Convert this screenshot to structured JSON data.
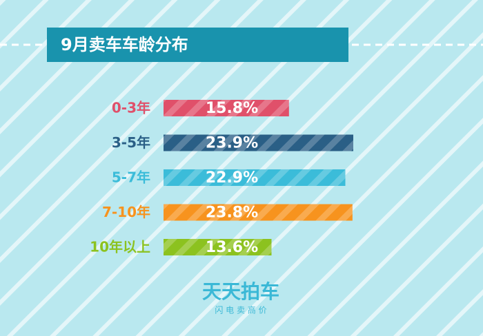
{
  "chart_data": {
    "type": "bar",
    "orientation": "horizontal",
    "title": "9月卖车车龄分布",
    "categories": [
      "0-3年",
      "3-5年",
      "5-7年",
      "7-10年",
      "10年以上"
    ],
    "values": [
      15.8,
      23.9,
      22.9,
      23.8,
      13.6
    ],
    "value_labels": [
      "15.8%",
      "23.9%",
      "22.9%",
      "23.8%",
      "13.6%"
    ],
    "colors": [
      "#e0506a",
      "#2a5f86",
      "#3bbcd9",
      "#f7931e",
      "#8cc21f"
    ],
    "footer": {
      "logo": "天天拍车",
      "slogan": "闪 电 卖 高 价"
    }
  }
}
